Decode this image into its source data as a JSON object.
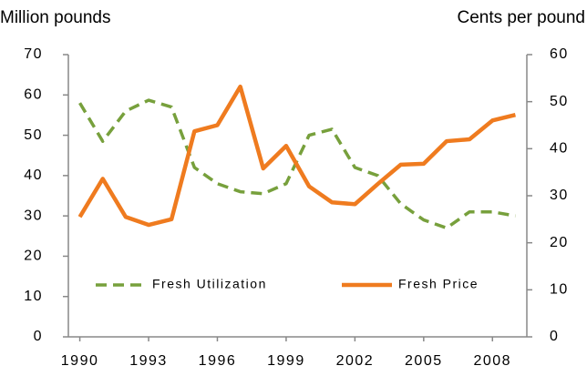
{
  "chart_data": {
    "type": "line",
    "ylabel": "Million pounds",
    "y2label": "Cents per pound",
    "x": [
      1990,
      1991,
      1992,
      1993,
      1994,
      1995,
      1996,
      1997,
      1998,
      1999,
      2000,
      2001,
      2002,
      2003,
      2004,
      2005,
      2006,
      2007,
      2008,
      2009
    ],
    "series": [
      {
        "name": "Fresh Utilization",
        "color": "#77a03c",
        "dash": true,
        "values": [
          58,
          48.5,
          56,
          58.7,
          57,
          42,
          38,
          36,
          35.5,
          38,
          50,
          51.5,
          42,
          40,
          33,
          29,
          27,
          31,
          31,
          30
        ]
      },
      {
        "name": "Fresh Price",
        "color": "#ef7b1f",
        "axis": "y2",
        "dash": false,
        "values": [
          25.5,
          33.6,
          25.5,
          23.8,
          25,
          43.7,
          45,
          53.2,
          35.8,
          40.6,
          32,
          28.6,
          28.2,
          32.5,
          36.6,
          36.8,
          41.6,
          42,
          46,
          47.2
        ]
      }
    ],
    "xlim": [
      1989.5,
      2009.5
    ],
    "xticks": [
      1990,
      1993,
      1996,
      1999,
      2002,
      2005,
      2008
    ],
    "ylim": [
      0,
      70
    ],
    "yticks": [
      0,
      10,
      20,
      30,
      40,
      50,
      60,
      70
    ],
    "y2lim": [
      0,
      60
    ],
    "y2ticks": [
      0,
      10,
      20,
      30,
      40,
      50,
      60
    ],
    "grid": false,
    "legend": "bottom"
  }
}
